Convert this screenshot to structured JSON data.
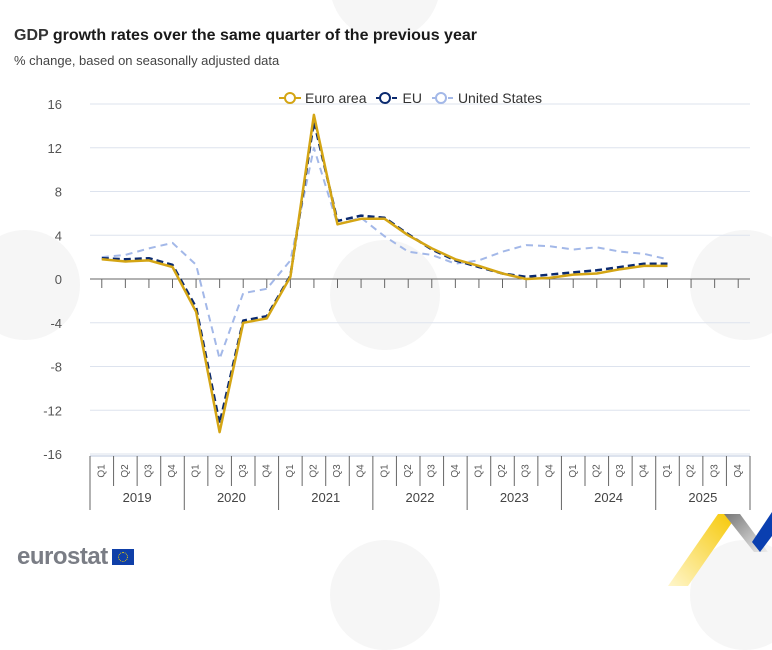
{
  "header": {
    "title_part1": "GDP",
    "title_part2": " growth rates over the same quarter of the previous year",
    "subtitle": "% change, based on seasonally adjusted data"
  },
  "branding": {
    "logo_text": "eurostat",
    "flag_icon": "eu-flag-icon"
  },
  "colors": {
    "euro_area": "#d4a514",
    "eu": "#0b2a6f",
    "us": "#a3b8e8",
    "grid": "#dde3ee",
    "axis": "#666666"
  },
  "chart_data": {
    "type": "line",
    "title": "GDP growth rates over the same quarter of the previous year",
    "subtitle": "% change, based on seasonally adjusted data",
    "xlabel": "",
    "ylabel": "",
    "ylim": [
      -16,
      16
    ],
    "yticks": [
      16,
      12,
      8,
      4,
      0,
      -4,
      -8,
      -12,
      -16
    ],
    "ytick_labels": [
      "16",
      "12",
      "8",
      "4",
      "0",
      "-4",
      "-8",
      "-12",
      "-16"
    ],
    "grid": true,
    "legend_position": "top-center",
    "years": [
      "2019",
      "2020",
      "2021",
      "2022",
      "2023",
      "2024",
      "2025"
    ],
    "quarters": [
      "Q1",
      "Q2",
      "Q3",
      "Q4"
    ],
    "x": [
      "2019Q1",
      "2019Q2",
      "2019Q3",
      "2019Q4",
      "2020Q1",
      "2020Q2",
      "2020Q3",
      "2020Q4",
      "2021Q1",
      "2021Q2",
      "2021Q3",
      "2021Q4",
      "2022Q1",
      "2022Q2",
      "2022Q3",
      "2022Q4",
      "2023Q1",
      "2023Q2",
      "2023Q3",
      "2023Q4",
      "2024Q1",
      "2024Q2",
      "2024Q3",
      "2024Q4",
      "2025Q1",
      "2025Q2",
      "2025Q3",
      "2025Q4"
    ],
    "series": [
      {
        "name": "Euro area",
        "style": "solid",
        "values": [
          1.8,
          1.6,
          1.7,
          1.1,
          -3.0,
          -14.0,
          -4.0,
          -3.6,
          0.2,
          15.0,
          5.0,
          5.5,
          5.5,
          4.0,
          2.8,
          1.8,
          1.2,
          0.5,
          0.0,
          0.1,
          0.4,
          0.5,
          0.9,
          1.2,
          1.2
        ]
      },
      {
        "name": "EU",
        "style": "dashed",
        "values": [
          1.9,
          1.8,
          1.9,
          1.3,
          -2.6,
          -13.2,
          -3.8,
          -3.4,
          0.3,
          14.4,
          5.3,
          5.8,
          5.6,
          4.1,
          2.7,
          1.7,
          1.1,
          0.5,
          0.2,
          0.4,
          0.6,
          0.8,
          1.1,
          1.4,
          1.4
        ]
      },
      {
        "name": "United States",
        "style": "dashed",
        "values": [
          2.0,
          2.2,
          2.8,
          3.3,
          1.3,
          -7.3,
          -1.3,
          -0.9,
          1.7,
          12.0,
          5.0,
          5.6,
          3.9,
          2.5,
          2.2,
          1.4,
          1.7,
          2.5,
          3.1,
          3.0,
          2.7,
          2.9,
          2.5,
          2.3,
          1.8
        ]
      }
    ]
  }
}
